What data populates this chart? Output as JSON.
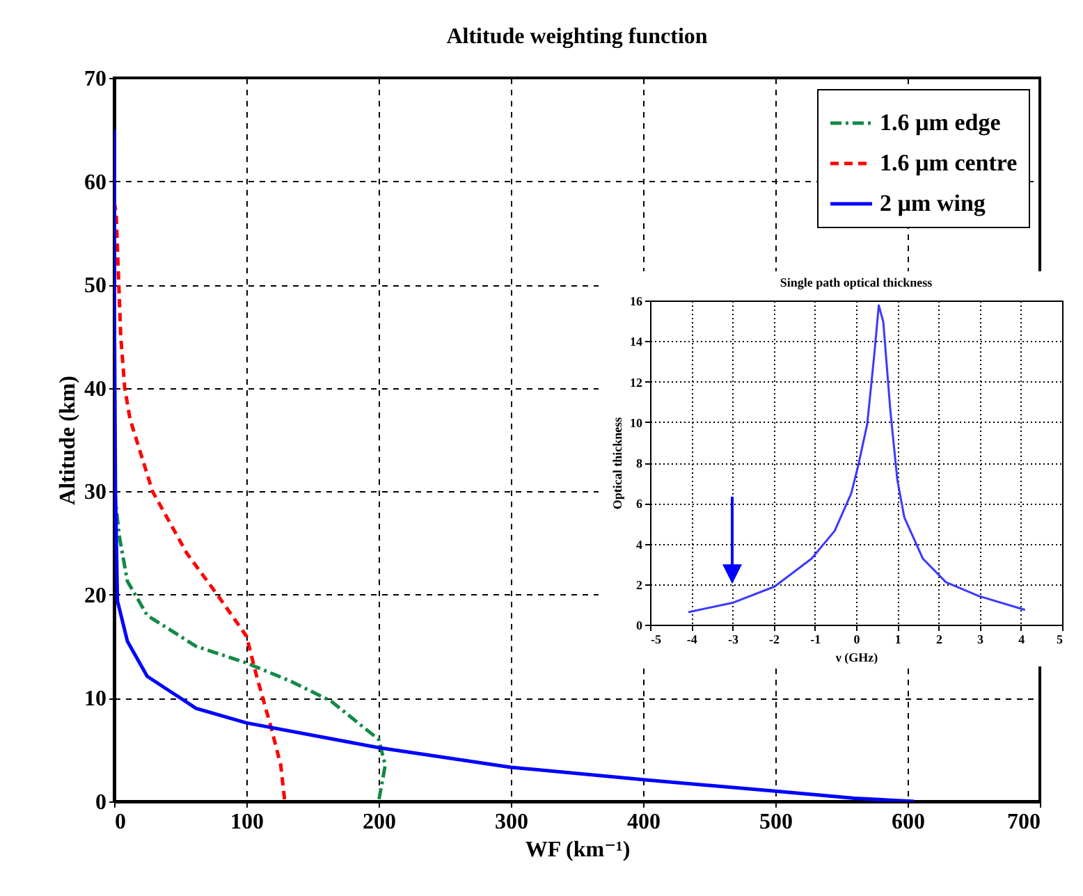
{
  "chart_data": [
    {
      "type": "line",
      "title": "Altitude weighting function",
      "xlabel": "WF (km⁻¹)",
      "ylabel": "Altitude (km)",
      "xlim": [
        0,
        700
      ],
      "ylim": [
        0,
        70
      ],
      "xticks": [
        0,
        100,
        200,
        300,
        400,
        500,
        600,
        700
      ],
      "yticks": [
        0,
        10,
        20,
        30,
        40,
        50,
        60,
        70
      ],
      "grid": true,
      "legend": "top right",
      "series": [
        {
          "name": "1.6 µm edge",
          "color": "#138a45",
          "line_style": "dashdot",
          "x": [
            0,
            1,
            4,
            10,
            25,
            62,
            100,
            134,
            164,
            200,
            205,
            200
          ],
          "values": [
            30,
            29,
            25.6,
            21.3,
            18,
            15,
            13.4,
            11.6,
            9.7,
            6,
            3.5,
            0
          ]
        },
        {
          "name": "1.6 µm centre",
          "color": "#ff0000",
          "line_style": "dashed",
          "x": [
            0,
            1.5,
            3.5,
            5,
            8,
            12,
            29,
            55,
            78,
            100,
            108,
            119,
            126,
            129
          ],
          "values": [
            58,
            57,
            50,
            45,
            40,
            37,
            30,
            24,
            20,
            16,
            12,
            7,
            3.5,
            0
          ]
        },
        {
          "name": "2 µm wing",
          "color": "#0000ff",
          "line_style": "solid",
          "x": [
            0,
            0.3,
            1,
            2.5,
            10,
            25,
            62,
            100,
            200,
            300,
            400,
            500,
            560,
            605
          ],
          "values": [
            65,
            45,
            30,
            19.4,
            15.5,
            12.1,
            9,
            7.6,
            5.2,
            3.3,
            2.1,
            1,
            0.3,
            0
          ]
        }
      ]
    },
    {
      "type": "line",
      "title": "Single path optical thickness",
      "xlabel": "ν (GHz)",
      "ylabel": "Optical thickness",
      "xlim": [
        -5,
        5
      ],
      "ylim": [
        0,
        16
      ],
      "xticks": [
        -5,
        -4,
        -3,
        -2,
        -1,
        0,
        1,
        2,
        3,
        4,
        5
      ],
      "yticks": [
        0,
        2,
        4,
        6,
        8,
        10,
        12,
        14,
        16
      ],
      "grid": true,
      "series": [
        {
          "color": "#3a3aff",
          "line_style": "solid",
          "x": [
            -4.07,
            -3,
            -1.98,
            -1.08,
            -0.52,
            -0.12,
            0.05,
            0.27,
            0.44,
            0.55,
            0.66,
            0.83,
            1,
            1.17,
            1.62,
            2.18,
            2.97,
            4.1
          ],
          "values": [
            0.62,
            1.08,
            1.88,
            3.26,
            4.63,
            6.47,
            7.84,
            9.9,
            13.3,
            15.76,
            14.95,
            10.6,
            7.16,
            5.3,
            3.26,
            2.1,
            1.42,
            0.73
          ]
        }
      ]
    }
  ]
}
